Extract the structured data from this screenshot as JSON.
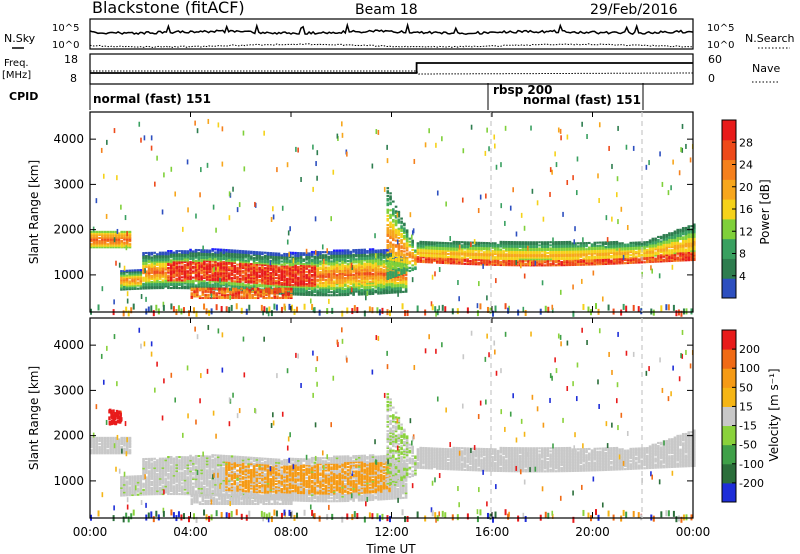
{
  "header": {
    "site": "Blackstone (fitACF)",
    "beam": "Beam 18",
    "date": "29/Feb/2016"
  },
  "params": {
    "nsky_label": "N.Sky",
    "nsearch_label": "N.Search",
    "freq_label_1": "Freq.",
    "freq_label_2": "[MHz]",
    "nave_label": "Nave",
    "cpid_label": "CPID",
    "nsky_ticks": [
      "10^5",
      "10^0"
    ],
    "nsearch_ticks": [
      "10^5",
      "10^0"
    ],
    "freq_ticks": [
      "18",
      "8"
    ],
    "nave_ticks": [
      "60",
      "0"
    ]
  },
  "modes": [
    {
      "label": "normal (fast) 151",
      "start_hour": 0
    },
    {
      "label": "rbsp 200",
      "start_hour": 16
    },
    {
      "label": "normal (fast) 151",
      "start_hour": 16
    }
  ],
  "colors": {
    "power_scale": [
      "#1e1eff",
      "#2d4fbf",
      "#2e7d4f",
      "#39a060",
      "#7fd03a",
      "#f5d21a",
      "#f7a61c",
      "#f5801c",
      "#ee4a1a",
      "#e81b1b"
    ],
    "velocity_scale": [
      "#1e2ed8",
      "#2b6e3a",
      "#3fa048",
      "#8ad23b",
      "#c8c8c8",
      "#f5b515",
      "#f59a15",
      "#f06a15",
      "#e81b1b"
    ],
    "dashed_marker": "#c8c8c8"
  },
  "chart_data": [
    {
      "type": "heatmap",
      "name": "power",
      "ylabel": "Slant Range [km]",
      "ylim": [
        180,
        4600
      ],
      "yticks": [
        1000,
        2000,
        3000,
        4000
      ],
      "colorbar_label": "Power [dB]",
      "colorbar_ticks": [
        4,
        8,
        12,
        16,
        20,
        24,
        28
      ],
      "colorbar_range": [
        0,
        30
      ],
      "vertical_markers_hour": [
        16,
        22
      ]
    },
    {
      "type": "heatmap",
      "name": "velocity",
      "ylabel": "Slant Range [km]",
      "xlabel": "Time UT",
      "ylim": [
        180,
        4600
      ],
      "yticks": [
        1000,
        2000,
        3000,
        4000
      ],
      "xticks": [
        "00:00",
        "04:00",
        "08:00",
        "12:00",
        "16:00",
        "20:00",
        "00:00"
      ],
      "colorbar_label": "Velocity [m s⁻¹]",
      "colorbar_ticks": [
        200,
        100,
        50,
        15,
        -15,
        -50,
        -100,
        -200
      ],
      "vertical_markers_hour": [
        16,
        22
      ]
    }
  ]
}
